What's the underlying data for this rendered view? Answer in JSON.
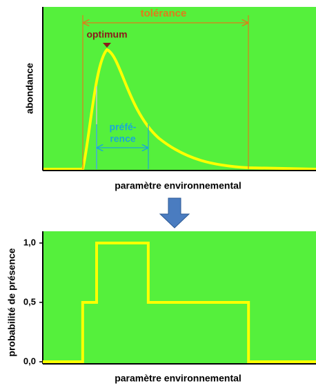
{
  "top": {
    "y_label": "abondance",
    "x_label": "paramètre environnemental",
    "tolerance": "tolérance",
    "optimum": "optimum",
    "preference_1": "préfé-",
    "preference_2": "rence"
  },
  "chart_data": {
    "type": "line",
    "y_label": "probabilité de présence",
    "x_label": "paramètre environnemental",
    "x": [
      0,
      14.6,
      14.6,
      19.7,
      19.7,
      38.6,
      38.6,
      75.3,
      75.3,
      100
    ],
    "values": [
      0,
      0,
      0.5,
      0.5,
      1,
      1,
      0.5,
      0.5,
      0,
      0
    ],
    "color": "#ffff00",
    "xlim": [
      0,
      100
    ],
    "ylim": [
      0,
      1
    ],
    "yticks": [
      {
        "value": 0,
        "label": "0,0"
      },
      {
        "value": 0.5,
        "label": "0,5"
      },
      {
        "value": 1,
        "label": "1,0"
      }
    ]
  }
}
